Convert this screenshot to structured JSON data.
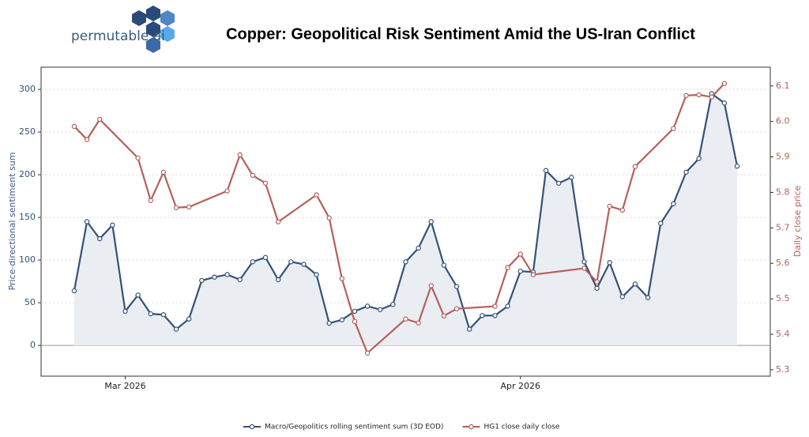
{
  "header": {
    "logo": "permutable.ai"
  },
  "chart_data": {
    "type": "line",
    "title": "Copper: Geopolitical Risk Sentiment Amid the US-Iran Conflict",
    "y_label": "Price-directional sentiment sum",
    "y2_label": "Daily close price",
    "xlim": [
      -6.6,
      50.6
    ],
    "xticks": [
      {
        "value": 0,
        "label": "Mar 2026"
      },
      {
        "value": 31,
        "label": "Apr 2026"
      }
    ],
    "ylim": [
      -36,
      326
    ],
    "yticks": [
      0,
      50,
      100,
      150,
      200,
      250,
      300
    ],
    "y2lim": [
      5.282,
      6.153
    ],
    "y2ticks": [
      5.3,
      5.4,
      5.5,
      5.6,
      5.7,
      5.8,
      5.9,
      {
        "value": 6,
        "label": "6.0"
      },
      6.1
    ],
    "grid": true,
    "legend": "bottom",
    "series": [
      {
        "name": "Macro/Geopolitics rolling sentiment sum (3D EOD)",
        "color": "#34527a",
        "fill_color": "#eaeef2",
        "axis": "y",
        "x": [
          -4,
          -3,
          -2,
          -1,
          0,
          1,
          2,
          3,
          4,
          5,
          6,
          7,
          8,
          9,
          10,
          11,
          12,
          13,
          14,
          15,
          16,
          17,
          18,
          19,
          20,
          21,
          22,
          23,
          24,
          25,
          26,
          27,
          28,
          29,
          30,
          31,
          32,
          33,
          34,
          35,
          36,
          37,
          38,
          39,
          40,
          41,
          42,
          43,
          44,
          45,
          46,
          47,
          48
        ],
        "values": [
          64,
          145,
          125,
          141,
          40,
          59,
          37,
          36,
          19,
          31,
          76,
          80,
          83,
          77,
          98,
          103,
          77,
          98,
          95,
          83,
          26,
          30,
          40,
          46,
          42,
          48,
          98,
          114,
          145,
          94,
          69,
          19,
          35,
          35,
          46,
          87,
          86,
          205,
          190,
          197,
          98,
          67,
          97,
          57,
          72,
          56,
          143,
          166,
          203,
          219,
          295,
          284,
          210
        ]
      },
      {
        "name": "HG1 close daily close",
        "color": "#b5605a",
        "axis": "y2",
        "x": [
          -4,
          -3,
          -2,
          1,
          2,
          3,
          4,
          5,
          8,
          9,
          10,
          11,
          12,
          15,
          16,
          17,
          18,
          19,
          22,
          23,
          24,
          25,
          26,
          29,
          30,
          31,
          32,
          36,
          37,
          38,
          39,
          40,
          43,
          44,
          45,
          46,
          47
        ],
        "values": [
          5.986,
          5.949,
          6.006,
          5.897,
          5.777,
          5.857,
          5.757,
          5.759,
          5.804,
          5.906,
          5.848,
          5.826,
          5.717,
          5.793,
          5.728,
          5.557,
          5.436,
          5.347,
          5.443,
          5.432,
          5.537,
          5.452,
          5.472,
          5.479,
          5.588,
          5.626,
          5.568,
          5.586,
          5.548,
          5.761,
          5.75,
          5.873,
          5.98,
          6.073,
          6.075,
          6.069,
          6.107
        ]
      }
    ]
  }
}
